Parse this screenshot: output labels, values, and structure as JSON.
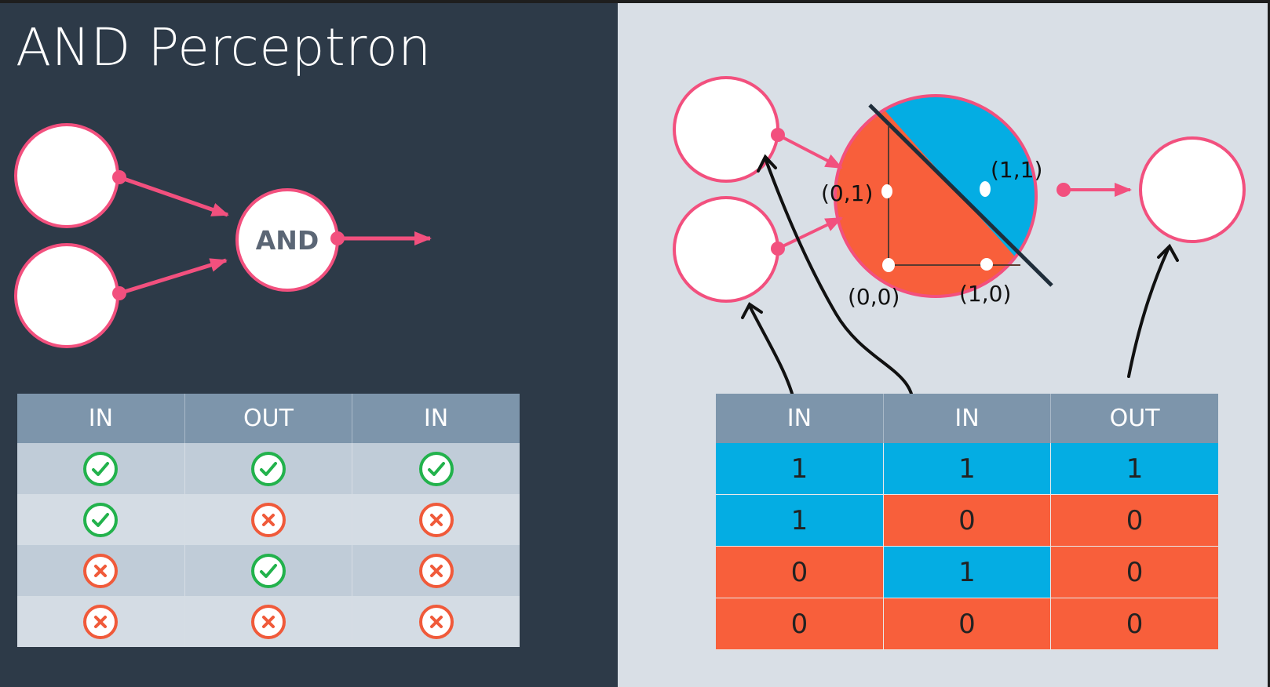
{
  "title": "AND Perceptron",
  "left_diagram": {
    "node_label": "AND"
  },
  "left_table": {
    "headers": [
      "IN",
      "OUT",
      "IN"
    ],
    "rows": [
      [
        "check-icon",
        "check-icon",
        "check-icon"
      ],
      [
        "check-icon",
        "cross-icon",
        "cross-icon"
      ],
      [
        "cross-icon",
        "check-icon",
        "cross-icon"
      ],
      [
        "cross-icon",
        "cross-icon",
        "cross-icon"
      ]
    ]
  },
  "right_diagram": {
    "point_labels": {
      "p01": "(0,1)",
      "p11": "(1,1)",
      "p00": "(0,0)",
      "p10": "(1,0)"
    }
  },
  "right_table": {
    "headers": [
      "IN",
      "IN",
      "OUT"
    ],
    "rows": [
      [
        "1",
        "1",
        "1"
      ],
      [
        "1",
        "0",
        "0"
      ],
      [
        "0",
        "1",
        "0"
      ],
      [
        "0",
        "0",
        "0"
      ]
    ],
    "cell_colors": [
      [
        "blue",
        "blue",
        "blue"
      ],
      [
        "blue",
        "red",
        "red"
      ],
      [
        "red",
        "blue",
        "red"
      ],
      [
        "red",
        "red",
        "red"
      ]
    ]
  },
  "colors": {
    "node_border": "#f2507e",
    "blue": "#04ade3",
    "red": "#f85f3b",
    "check": "#22b24c",
    "cross": "#f05a3a"
  }
}
